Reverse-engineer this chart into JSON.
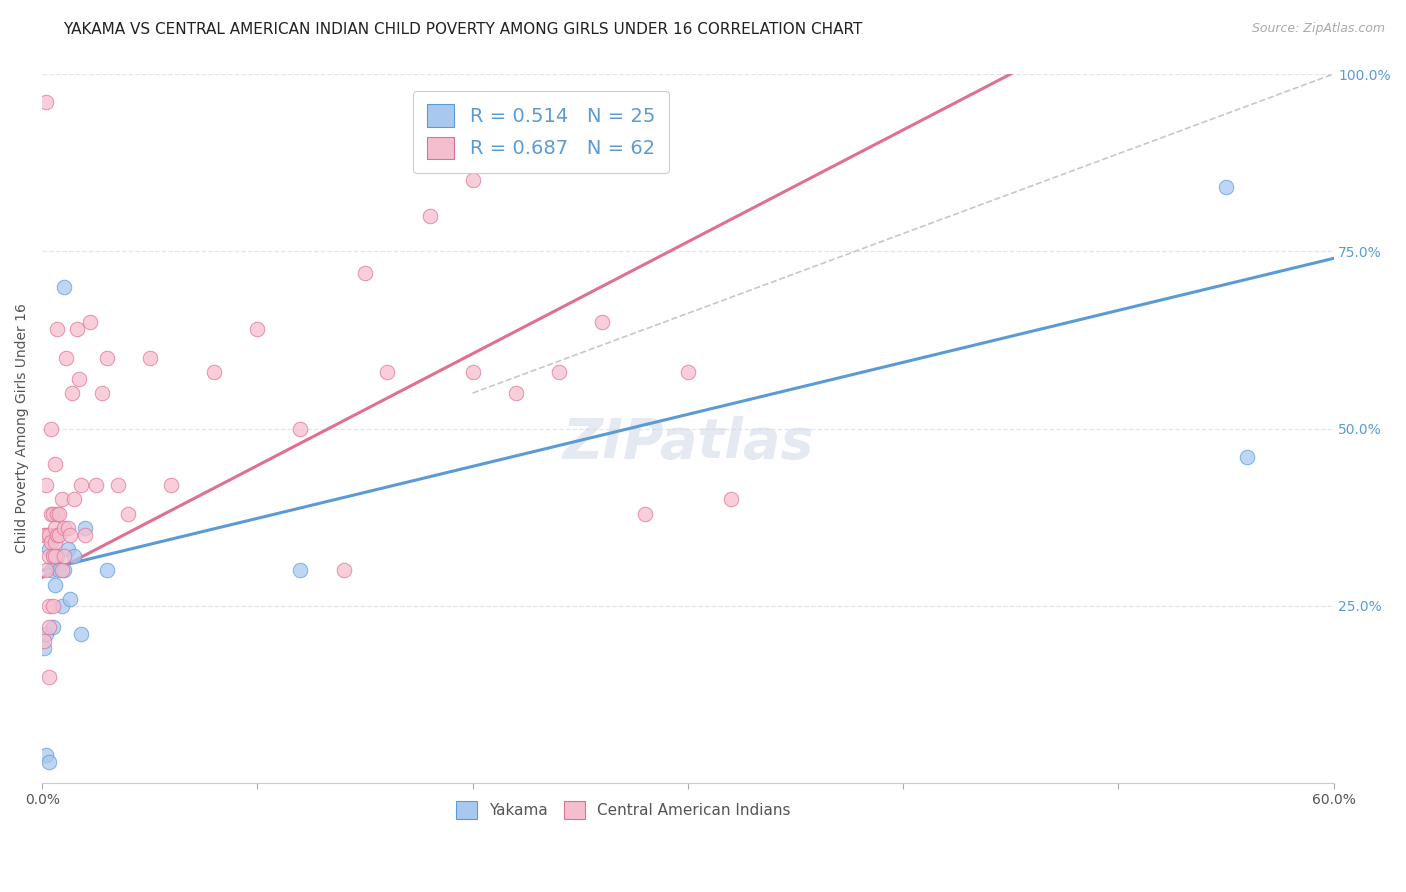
{
  "title": "YAKAMA VS CENTRAL AMERICAN INDIAN CHILD POVERTY AMONG GIRLS UNDER 16 CORRELATION CHART",
  "source": "Source: ZipAtlas.com",
  "ylabel": "Child Poverty Among Girls Under 16",
  "xlim": [
    0.0,
    0.6
  ],
  "ylim": [
    0.0,
    1.0
  ],
  "xticks": [
    0.0,
    0.1,
    0.2,
    0.3,
    0.4,
    0.5,
    0.6
  ],
  "xtick_labels": [
    "0.0%",
    "",
    "",
    "",
    "",
    "",
    "60.0%"
  ],
  "yticks": [
    0.0,
    0.25,
    0.5,
    0.75,
    1.0
  ],
  "ytick_labels": [
    "",
    "25.0%",
    "50.0%",
    "75.0%",
    "100.0%"
  ],
  "legend_labels": [
    "Yakama",
    "Central American Indians"
  ],
  "blue_color": "#a8c8f0",
  "pink_color": "#f5bece",
  "blue_edge_color": "#5b9bd5",
  "pink_edge_color": "#e07090",
  "blue_line_color": "#5b9bd5",
  "pink_line_color": "#e07090",
  "dashed_line_color": "#c8c8c8",
  "watermark": "ZIPatlas",
  "legend_R_blue": "0.514",
  "legend_N_blue": "25",
  "legend_R_pink": "0.687",
  "legend_N_pink": "62",
  "blue_scatter_x": [
    0.001,
    0.002,
    0.002,
    0.003,
    0.003,
    0.003,
    0.004,
    0.005,
    0.005,
    0.006,
    0.006,
    0.007,
    0.008,
    0.009,
    0.01,
    0.01,
    0.012,
    0.013,
    0.015,
    0.018,
    0.02,
    0.03,
    0.12,
    0.55,
    0.56
  ],
  "blue_scatter_y": [
    0.19,
    0.21,
    0.04,
    0.35,
    0.33,
    0.03,
    0.3,
    0.32,
    0.22,
    0.31,
    0.28,
    0.32,
    0.3,
    0.25,
    0.3,
    0.7,
    0.33,
    0.26,
    0.32,
    0.21,
    0.36,
    0.3,
    0.3,
    0.84,
    0.46
  ],
  "pink_scatter_x": [
    0.001,
    0.001,
    0.002,
    0.002,
    0.002,
    0.003,
    0.003,
    0.003,
    0.003,
    0.004,
    0.004,
    0.004,
    0.005,
    0.005,
    0.005,
    0.006,
    0.006,
    0.006,
    0.006,
    0.007,
    0.007,
    0.007,
    0.008,
    0.008,
    0.009,
    0.009,
    0.01,
    0.01,
    0.011,
    0.012,
    0.013,
    0.014,
    0.015,
    0.016,
    0.017,
    0.018,
    0.02,
    0.022,
    0.025,
    0.028,
    0.03,
    0.035,
    0.04,
    0.05,
    0.06,
    0.08,
    0.1,
    0.12,
    0.14,
    0.16,
    0.18,
    0.2,
    0.22,
    0.24,
    0.26,
    0.28,
    0.3,
    0.32,
    0.002,
    0.003,
    0.15,
    0.2
  ],
  "pink_scatter_y": [
    0.35,
    0.2,
    0.35,
    0.3,
    0.42,
    0.32,
    0.35,
    0.25,
    0.22,
    0.34,
    0.38,
    0.5,
    0.32,
    0.38,
    0.25,
    0.32,
    0.34,
    0.36,
    0.45,
    0.38,
    0.64,
    0.35,
    0.35,
    0.38,
    0.4,
    0.3,
    0.32,
    0.36,
    0.6,
    0.36,
    0.35,
    0.55,
    0.4,
    0.64,
    0.57,
    0.42,
    0.35,
    0.65,
    0.42,
    0.55,
    0.6,
    0.42,
    0.38,
    0.6,
    0.42,
    0.58,
    0.64,
    0.5,
    0.3,
    0.58,
    0.8,
    0.58,
    0.55,
    0.58,
    0.65,
    0.38,
    0.58,
    0.4,
    0.96,
    0.15,
    0.72,
    0.85
  ],
  "blue_line_x": [
    0.0,
    0.6
  ],
  "blue_line_y": [
    0.3,
    0.74
  ],
  "pink_line_x": [
    0.0,
    0.45
  ],
  "pink_line_y": [
    0.29,
    1.0
  ],
  "dashed_line_x": [
    0.2,
    0.6
  ],
  "dashed_line_y": [
    0.55,
    1.0
  ],
  "grid_color": "#e5e5e5",
  "background_color": "#ffffff",
  "title_fontsize": 11,
  "axis_label_fontsize": 10,
  "tick_fontsize": 10,
  "legend_fontsize": 14,
  "watermark_fontsize": 40,
  "watermark_color": "#d0d8e8",
  "source_fontsize": 9
}
